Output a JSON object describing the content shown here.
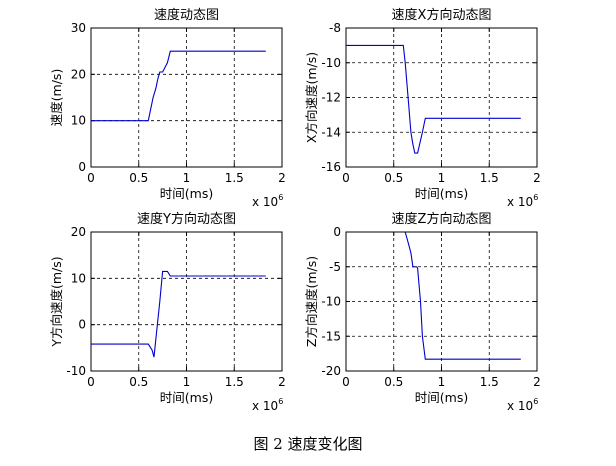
{
  "figure": {
    "caption": "图 2  速度变化图"
  },
  "chart_data": [
    {
      "type": "line",
      "title": "速度动态图",
      "xlabel": "时间(ms)",
      "ylabel": "速度(m/s)",
      "x_multiplier": "x 10^6",
      "xlim": [
        0,
        2
      ],
      "ylim": [
        0,
        30
      ],
      "xticks": [
        "0",
        "0.5",
        "1",
        "1.5",
        "2"
      ],
      "yticks": [
        "0",
        "10",
        "20",
        "30"
      ],
      "grid": true,
      "series": [
        {
          "color": "#0000cc",
          "x": [
            0,
            0.3,
            0.6,
            0.62,
            0.65,
            0.68,
            0.7,
            0.72,
            0.75,
            0.8,
            0.83,
            1.0,
            1.5,
            1.83
          ],
          "y": [
            10,
            10,
            10,
            12,
            15,
            17,
            19,
            20.5,
            20.5,
            22.5,
            25,
            25,
            25,
            25
          ]
        }
      ]
    },
    {
      "type": "line",
      "title": "速度X方向动态图",
      "xlabel": "时间(ms)",
      "ylabel": "X方向速度(m/s)",
      "x_multiplier": "x 10^6",
      "xlim": [
        0,
        2
      ],
      "ylim": [
        -16,
        -8
      ],
      "xticks": [
        "0",
        "0.5",
        "1",
        "1.5",
        "2"
      ],
      "yticks": [
        "-8",
        "-10",
        "-12",
        "-14",
        "-16"
      ],
      "grid": true,
      "series": [
        {
          "color": "#0000cc",
          "x": [
            0,
            0.3,
            0.6,
            0.62,
            0.65,
            0.68,
            0.7,
            0.72,
            0.75,
            0.8,
            0.83,
            1.0,
            1.5,
            1.83
          ],
          "y": [
            -9,
            -9,
            -9,
            -10,
            -12,
            -14,
            -14.7,
            -15.2,
            -15.2,
            -14,
            -13.2,
            -13.2,
            -13.2,
            -13.2
          ]
        }
      ]
    },
    {
      "type": "line",
      "title": "速度Y方向动态图",
      "xlabel": "时间(ms)",
      "ylabel": "Y方向速度(m/s)",
      "x_multiplier": "x 10^6",
      "xlim": [
        0,
        2
      ],
      "ylim": [
        -10,
        20
      ],
      "xticks": [
        "0",
        "0.5",
        "1",
        "1.5",
        "2"
      ],
      "yticks": [
        "-10",
        "0",
        "10",
        "20"
      ],
      "grid": true,
      "series": [
        {
          "color": "#0000cc",
          "x": [
            0,
            0.3,
            0.6,
            0.64,
            0.66,
            0.68,
            0.72,
            0.75,
            0.8,
            0.83,
            1.0,
            1.5,
            1.83
          ],
          "y": [
            -4.2,
            -4.2,
            -4.2,
            -5.5,
            -7,
            -3,
            5,
            11.5,
            11.5,
            10.5,
            10.5,
            10.5,
            10.5
          ]
        }
      ]
    },
    {
      "type": "line",
      "title": "速度Z方向动态图",
      "xlabel": "时间(ms)",
      "ylabel": "Z方向速度(m/s)",
      "x_multiplier": "x 10^6",
      "xlim": [
        0,
        2
      ],
      "ylim": [
        -20,
        0
      ],
      "xticks": [
        "0",
        "0.5",
        "1",
        "1.5",
        "2"
      ],
      "yticks": [
        "0",
        "-5",
        "-10",
        "-15",
        "-20"
      ],
      "grid": true,
      "series": [
        {
          "color": "#0000cc",
          "x": [
            0.62,
            0.65,
            0.68,
            0.7,
            0.74,
            0.75,
            0.78,
            0.8,
            0.83,
            1.0,
            1.5,
            1.83
          ],
          "y": [
            0,
            -1.5,
            -3,
            -5,
            -5,
            -5.2,
            -10,
            -15,
            -18.3,
            -18.3,
            -18.3,
            -18.3
          ]
        }
      ]
    }
  ]
}
